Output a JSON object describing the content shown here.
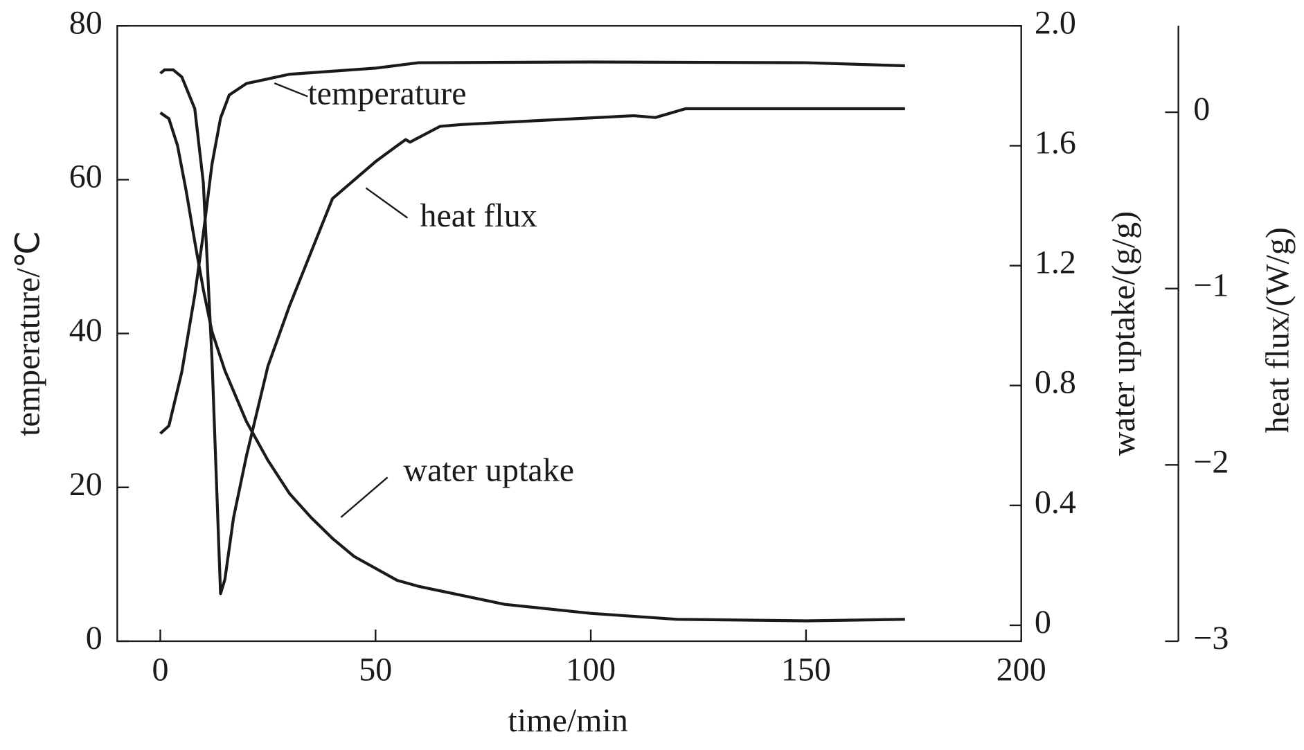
{
  "chart_data": {
    "type": "line",
    "x_label": "time/min",
    "y_label": "temperature/℃",
    "y2_label": "water uptake/(g/g)",
    "y3_label": "heat flux/(W/g)",
    "xlim": [
      -10,
      200
    ],
    "xticks": [
      0,
      50,
      100,
      150,
      200
    ],
    "ylim": [
      0,
      80
    ],
    "yticks": [
      0,
      20,
      40,
      60,
      80
    ],
    "y2lim": [
      -0.053,
      2.0
    ],
    "y2ticks": [
      0,
      0.4,
      0.8,
      1.2,
      1.6,
      {
        "value": 2,
        "label": "2.0"
      }
    ],
    "y3lim": [
      -3,
      0.49
    ],
    "y3ticks": [
      {
        "value": -3,
        "label": "−3"
      },
      {
        "value": -2,
        "label": "−2"
      },
      {
        "value": -1,
        "label": "−1"
      },
      0
    ],
    "series": [
      {
        "name": "temperature",
        "color": "#1a1a1a",
        "axis": "y",
        "x": [
          0,
          2,
          5,
          8,
          10,
          12,
          14,
          16,
          20,
          30,
          50,
          60,
          100,
          150,
          173
        ],
        "values": [
          27,
          28,
          35,
          45,
          53,
          62,
          68,
          71,
          72.5,
          73.7,
          74.5,
          75.2,
          75.3,
          75.2,
          74.8
        ]
      },
      {
        "name": "heat flux",
        "color": "#1a1a1a",
        "axis": "y3",
        "x": [
          0,
          1,
          3,
          5,
          8,
          10,
          12,
          14,
          15,
          17,
          20,
          25,
          30,
          40,
          50,
          55,
          57,
          58,
          65,
          70,
          110,
          115,
          122,
          150,
          173
        ],
        "values": [
          0.22,
          0.24,
          0.24,
          0.2,
          0.02,
          -0.4,
          -1.4,
          -2.73,
          -2.65,
          -2.3,
          -1.95,
          -1.44,
          -1.1,
          -0.49,
          -0.28,
          -0.19,
          -0.155,
          -0.17,
          -0.08,
          -0.07,
          -0.02,
          -0.03,
          0.02,
          0.02,
          0.02
        ]
      },
      {
        "name": "water uptake",
        "color": "#1a1a1a",
        "axis": "y2",
        "x": [
          0,
          2,
          4,
          6,
          8,
          10,
          12,
          15,
          20,
          25,
          30,
          35,
          40,
          45,
          50,
          55,
          60,
          70,
          80,
          100,
          120,
          150,
          173
        ],
        "values": [
          1.71,
          1.69,
          1.6,
          1.45,
          1.28,
          1.12,
          0.98,
          0.85,
          0.68,
          0.55,
          0.44,
          0.36,
          0.29,
          0.23,
          0.19,
          0.15,
          0.13,
          0.1,
          0.07,
          0.04,
          0.02,
          0.015,
          0.02
        ]
      }
    ]
  }
}
